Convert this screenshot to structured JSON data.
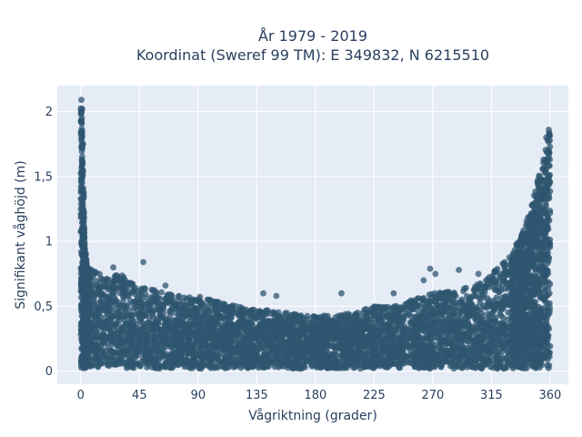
{
  "chart_data": {
    "type": "scatter",
    "title": "År 1979 - 2019",
    "subtitle": "Koordinat (Sweref 99 TM): E 349832, N 6215510",
    "xlabel": "Vågriktning (grader)",
    "ylabel": "Signifikant våghöjd (m)",
    "xlim": [
      -18,
      374
    ],
    "ylim": [
      -0.1,
      2.2
    ],
    "xticks": [
      0,
      45,
      90,
      135,
      180,
      225,
      270,
      315,
      360
    ],
    "xtick_labels": [
      "0",
      "45",
      "90",
      "135",
      "180",
      "225",
      "270",
      "315",
      "360"
    ],
    "yticks": [
      0,
      0.5,
      1,
      1.5,
      2
    ],
    "ytick_labels": [
      "0",
      "0,5",
      "1",
      "1,5",
      "2"
    ],
    "grid": true,
    "marker_color": "#2f5570",
    "plot_background": "#e5ecf6",
    "envelope_upper_max_height": {
      "x": [
        0,
        1,
        2,
        3,
        5,
        10,
        20,
        30,
        45,
        60,
        75,
        90,
        100,
        110,
        120,
        135,
        150,
        165,
        180,
        195,
        210,
        225,
        240,
        255,
        270,
        285,
        300,
        310,
        320,
        330,
        335,
        340,
        345,
        350,
        355,
        358,
        360
      ],
      "y": [
        2.1,
        1.95,
        1.5,
        1.0,
        0.8,
        0.78,
        0.72,
        0.75,
        0.65,
        0.62,
        0.58,
        0.58,
        0.55,
        0.52,
        0.5,
        0.48,
        0.46,
        0.44,
        0.43,
        0.43,
        0.45,
        0.5,
        0.5,
        0.55,
        0.6,
        0.62,
        0.65,
        0.7,
        0.8,
        0.9,
        1.0,
        1.1,
        1.25,
        1.45,
        1.65,
        1.8,
        1.87
      ]
    },
    "envelope_lower_min_height": {
      "x": [
        0,
        360
      ],
      "y": [
        0.02,
        0.02
      ]
    },
    "outliers": [
      {
        "x": 0.5,
        "y": 2.09
      },
      {
        "x": 1.2,
        "y": 2.02
      },
      {
        "x": 0.3,
        "y": 1.93
      },
      {
        "x": 1.8,
        "y": 1.75
      },
      {
        "x": 0.8,
        "y": 1.55
      },
      {
        "x": 2.2,
        "y": 1.38
      },
      {
        "x": 0.6,
        "y": 1.2
      },
      {
        "x": 1.5,
        "y": 1.08
      },
      {
        "x": 3.0,
        "y": 0.95
      },
      {
        "x": 48,
        "y": 0.84
      },
      {
        "x": 25,
        "y": 0.8
      },
      {
        "x": 65,
        "y": 0.66
      },
      {
        "x": 140,
        "y": 0.6
      },
      {
        "x": 150,
        "y": 0.58
      },
      {
        "x": 200,
        "y": 0.6
      },
      {
        "x": 240,
        "y": 0.6
      },
      {
        "x": 263,
        "y": 0.7
      },
      {
        "x": 268,
        "y": 0.79
      },
      {
        "x": 272,
        "y": 0.75
      },
      {
        "x": 290,
        "y": 0.78
      },
      {
        "x": 305,
        "y": 0.75
      },
      {
        "x": 318,
        "y": 0.68
      },
      {
        "x": 332,
        "y": 0.88
      },
      {
        "x": 338,
        "y": 1.0
      },
      {
        "x": 344,
        "y": 1.12
      },
      {
        "x": 352,
        "y": 1.5
      },
      {
        "x": 357,
        "y": 1.8
      },
      {
        "x": 359,
        "y": 1.86
      }
    ]
  }
}
